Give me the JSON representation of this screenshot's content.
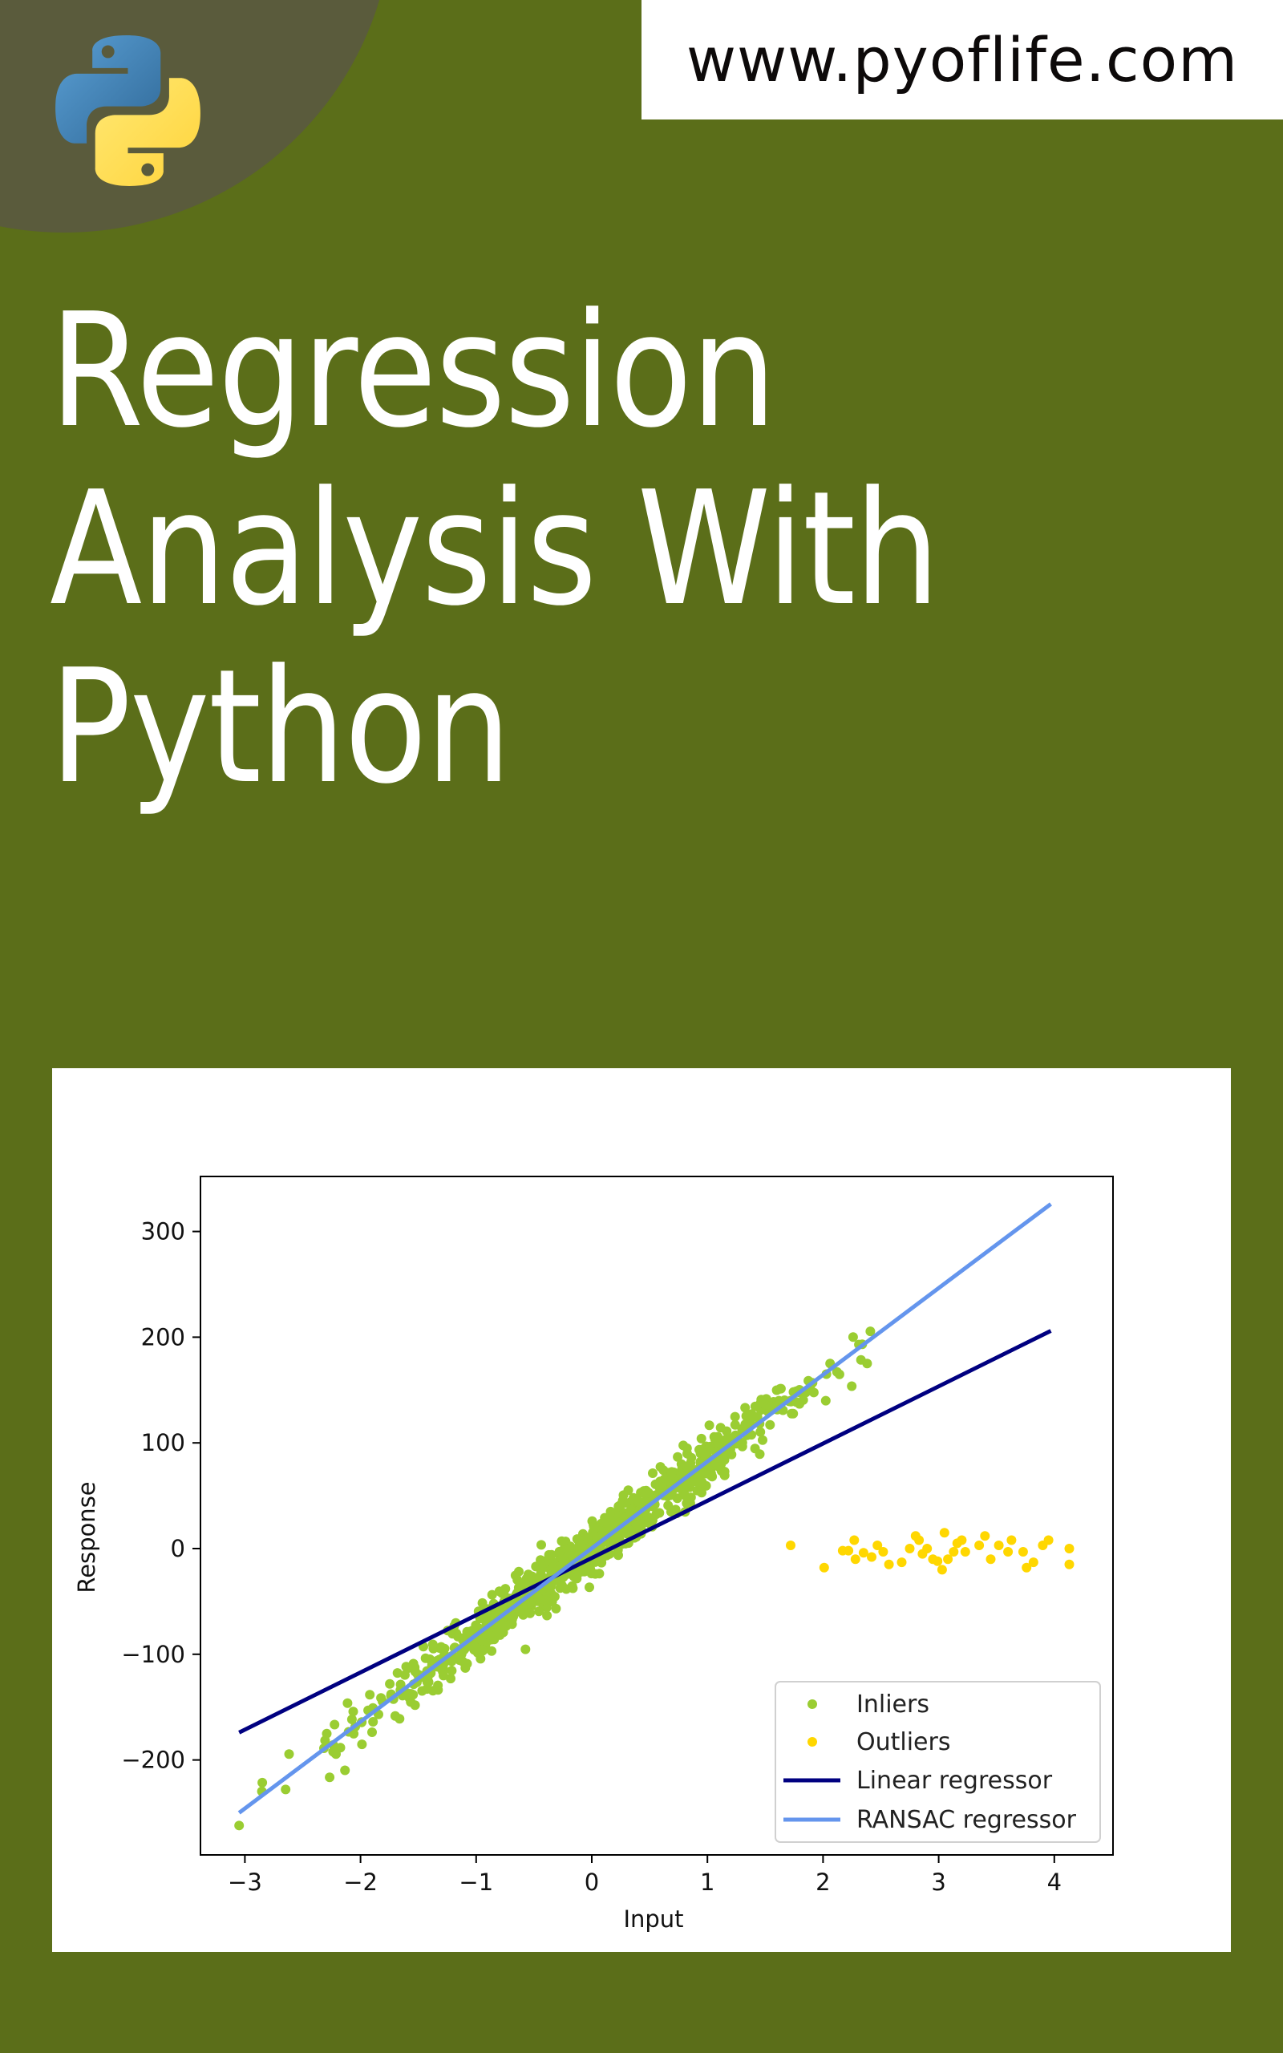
{
  "header": {
    "logo": "python-logo-icon",
    "site_url": "www.pyoflife.com"
  },
  "title": {
    "lines": [
      "Regression",
      "Analysis With",
      "Python"
    ]
  },
  "colors": {
    "background": "#5b6e19",
    "corner_blob": "#5a5b3c",
    "inliers": "#9acd32",
    "outliers": "#ffd700",
    "linear_regressor": "#000080",
    "ransac_regressor": "#6495ed"
  },
  "chart_data": {
    "type": "scatter",
    "title": "",
    "xlabel": "Input",
    "ylabel": "Response",
    "xlim": [
      -3.4,
      4.5
    ],
    "ylim": [
      -290,
      355
    ],
    "xticks": [
      -3,
      -2,
      -1,
      0,
      1,
      2,
      3,
      4
    ],
    "xtick_labels": [
      "−3",
      "−2",
      "−1",
      "0",
      "1",
      "2",
      "3",
      "4"
    ],
    "yticks": [
      300,
      200,
      100,
      0,
      -100,
      -200
    ],
    "ytick_labels": [
      "300",
      "200",
      "100",
      "0",
      "−100",
      "−200"
    ],
    "grid": false,
    "legend_position": "lower right",
    "legend": [
      "Inliers",
      "Outliers",
      "Linear regressor",
      "RANSAC regressor"
    ],
    "series": [
      {
        "name": "Inliers",
        "kind": "scatter",
        "color": "#9acd32",
        "description": "~950 points scattered tightly around y ≈ 82x, x from -3.05 to 2.8",
        "trend": {
          "slope": 82,
          "intercept": 0,
          "noise_sd": 12
        }
      },
      {
        "name": "Outliers",
        "kind": "scatter",
        "color": "#ffd700",
        "points": [
          [
            1.72,
            3
          ],
          [
            2.01,
            -18
          ],
          [
            2.17,
            -2
          ],
          [
            2.22,
            -2
          ],
          [
            2.27,
            8
          ],
          [
            2.28,
            -10
          ],
          [
            2.35,
            -4
          ],
          [
            2.42,
            -8
          ],
          [
            2.47,
            3
          ],
          [
            2.52,
            -3
          ],
          [
            2.57,
            -15
          ],
          [
            2.68,
            -13
          ],
          [
            2.75,
            0
          ],
          [
            2.8,
            12
          ],
          [
            2.83,
            8
          ],
          [
            2.86,
            -5
          ],
          [
            2.9,
            0
          ],
          [
            2.95,
            -10
          ],
          [
            2.99,
            -12
          ],
          [
            3.03,
            -20
          ],
          [
            3.05,
            15
          ],
          [
            3.08,
            -10
          ],
          [
            3.13,
            -3
          ],
          [
            3.16,
            5
          ],
          [
            3.2,
            8
          ],
          [
            3.23,
            -3
          ],
          [
            3.35,
            3
          ],
          [
            3.4,
            12
          ],
          [
            3.45,
            -10
          ],
          [
            3.52,
            3
          ],
          [
            3.6,
            -3
          ],
          [
            3.63,
            8
          ],
          [
            3.73,
            -3
          ],
          [
            3.76,
            -18
          ],
          [
            3.82,
            -13
          ],
          [
            3.9,
            3
          ],
          [
            3.95,
            8
          ],
          [
            4.13,
            0
          ],
          [
            4.13,
            -15
          ]
        ]
      },
      {
        "name": "Linear regressor",
        "kind": "line",
        "color": "#000080",
        "x": [
          -3.05,
          3.97
        ],
        "y": [
          -174,
          206
        ]
      },
      {
        "name": "RANSAC regressor",
        "kind": "line",
        "color": "#6495ed",
        "x": [
          -3.05,
          3.97
        ],
        "y": [
          -250,
          326
        ]
      }
    ]
  }
}
